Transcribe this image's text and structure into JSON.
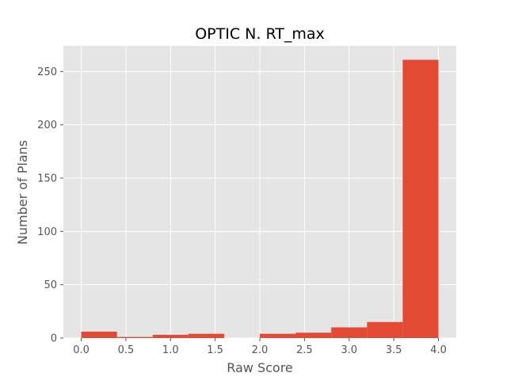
{
  "chart_data": {
    "type": "bar",
    "title": "OPTIC N. RT_max",
    "xlabel": "Raw Score",
    "ylabel": "Number of Plans",
    "bins": [
      {
        "x0": 0.0,
        "x1": 0.4,
        "count": 6
      },
      {
        "x0": 0.4,
        "x1": 0.8,
        "count": 1
      },
      {
        "x0": 0.8,
        "x1": 1.2,
        "count": 3
      },
      {
        "x0": 1.2,
        "x1": 1.6,
        "count": 4
      },
      {
        "x0": 1.6,
        "x1": 2.0,
        "count": 0
      },
      {
        "x0": 2.0,
        "x1": 2.4,
        "count": 4
      },
      {
        "x0": 2.4,
        "x1": 2.8,
        "count": 5
      },
      {
        "x0": 2.8,
        "x1": 3.2,
        "count": 10
      },
      {
        "x0": 3.2,
        "x1": 3.6,
        "count": 15
      },
      {
        "x0": 3.6,
        "x1": 4.0,
        "count": 261
      }
    ],
    "x_ticks": [
      "0.0",
      "0.5",
      "1.0",
      "1.5",
      "2.0",
      "2.5",
      "3.0",
      "3.5",
      "4.0"
    ],
    "y_ticks": [
      "0",
      "50",
      "100",
      "150",
      "200",
      "250"
    ],
    "xlim": [
      -0.2,
      4.2
    ],
    "ylim": [
      0,
      274
    ],
    "grid": true,
    "bar_color": "#E24A33",
    "background_color": "#E5E5E5",
    "grid_color": "#FFFFFF"
  }
}
